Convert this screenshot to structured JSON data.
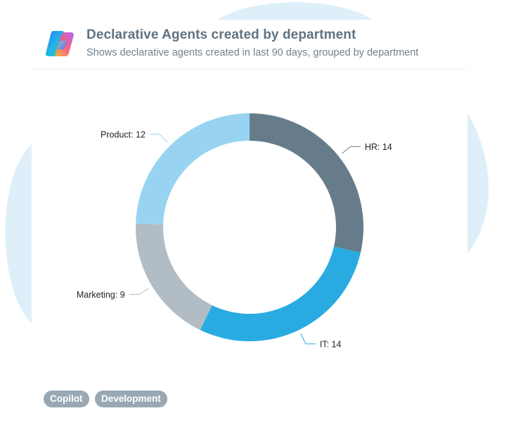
{
  "card": {
    "title": "Declarative Agents created by department",
    "subtitle": "Shows declarative agents created in last 90 days, grouped by department",
    "logo_icon": "copilot-logo-icon"
  },
  "chart_data": {
    "type": "pie",
    "style": "donut",
    "categories": [
      "HR",
      "IT",
      "Marketing",
      "Product"
    ],
    "values": [
      14,
      14,
      9,
      12
    ],
    "colors": [
      "#667c8a",
      "#29abe2",
      "#b1bcc4",
      "#98d4f2"
    ],
    "labels": [
      "HR: 14",
      "IT: 14",
      "Marketing: 9",
      "Product: 12"
    ],
    "title": "",
    "legend": "none"
  },
  "tags": [
    "Copilot",
    "Development"
  ],
  "colors": {
    "title": "#5f7382",
    "subtitle": "#6f8290",
    "tag_bg": "#99a8b3",
    "background_blob": "#deeffa"
  }
}
